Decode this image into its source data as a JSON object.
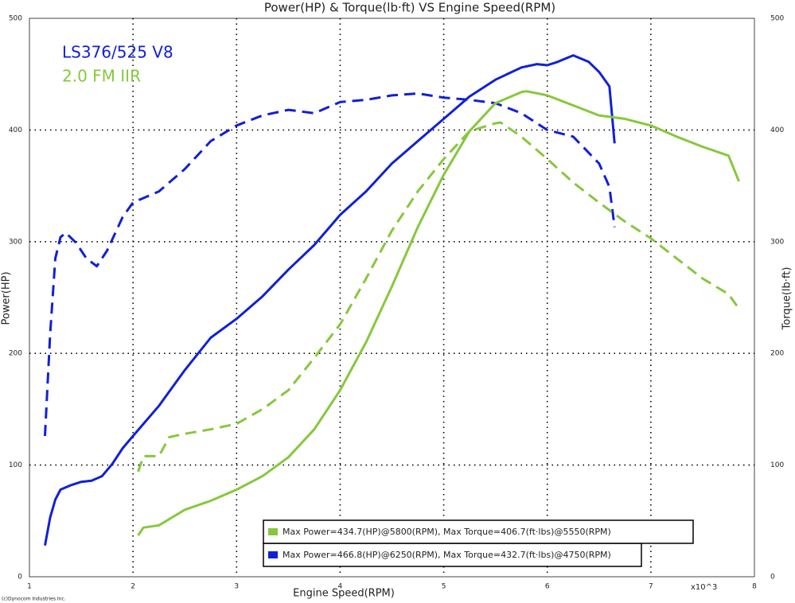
{
  "chart_data": {
    "type": "line",
    "title": "Power(HP) & Torque(lb·ft) VS Engine Speed(RPM)",
    "xlabel": "Engine Speed(RPM)",
    "ylabel": "Power(HP)",
    "y2label": "Torque(lb·ft)",
    "x_multiplier": "x10^3",
    "credit": "(c)Dynocom Industries Inc.",
    "xlim": [
      1,
      8
    ],
    "xticks": [
      1,
      2,
      3,
      4,
      5,
      6,
      7,
      8
    ],
    "ylim": [
      0,
      500
    ],
    "yticks": [
      0,
      100,
      200,
      300,
      400,
      500
    ],
    "y2lim": [
      0,
      500
    ],
    "y2ticks": [
      0,
      100,
      200,
      300,
      400,
      500
    ],
    "grid": true,
    "engines": [
      {
        "name": "LS376/525 V8",
        "color": "#1020d8",
        "summary": "Max Power=466.8(HP)@6250(RPM), Max Torque=432.7(ft·lbs)@4750(RPM)",
        "power": {
          "x": [
            1.15,
            1.2,
            1.25,
            1.3,
            1.4,
            1.5,
            1.6,
            1.7,
            1.8,
            1.9,
            2.0,
            2.25,
            2.5,
            2.75,
            3.0,
            3.25,
            3.5,
            3.75,
            4.0,
            4.25,
            4.5,
            4.75,
            5.0,
            5.25,
            5.5,
            5.75,
            5.9,
            6.0,
            6.1,
            6.25,
            6.4,
            6.5,
            6.6,
            6.65
          ],
          "values": [
            28,
            53,
            69,
            78,
            82,
            85,
            86,
            90,
            101,
            115,
            126,
            153,
            185,
            214,
            231,
            251,
            275,
            297,
            324,
            345,
            370,
            390,
            410,
            430,
            445,
            456,
            459,
            458,
            461,
            466.8,
            461,
            452,
            439,
            388
          ]
        },
        "torque": {
          "axis": "y2",
          "x": [
            1.15,
            1.2,
            1.25,
            1.3,
            1.35,
            1.45,
            1.55,
            1.65,
            1.75,
            1.9,
            2.0,
            2.25,
            2.5,
            2.75,
            3.0,
            3.25,
            3.5,
            3.75,
            4.0,
            4.25,
            4.5,
            4.75,
            5.0,
            5.25,
            5.5,
            5.75,
            6.0,
            6.25,
            6.5,
            6.6,
            6.65
          ],
          "values": [
            126,
            217,
            285,
            304,
            308,
            299,
            285,
            278,
            292,
            322,
            335,
            345,
            365,
            390,
            404,
            413,
            418,
            415,
            425,
            427,
            431,
            432.7,
            429,
            427,
            424,
            415,
            400,
            394,
            370,
            349,
            313
          ]
        }
      },
      {
        "name": "2.0 FM IIR",
        "color": "#86c83c",
        "summary": "Max Power=434.7(HP)@5800(RPM), Max Torque=406.7(ft·lbs)@5550(RPM)",
        "power": {
          "x": [
            2.05,
            2.1,
            2.25,
            2.5,
            2.75,
            3.0,
            3.25,
            3.5,
            3.75,
            4.0,
            4.25,
            4.5,
            4.75,
            5.0,
            5.25,
            5.5,
            5.75,
            5.8,
            6.0,
            6.25,
            6.5,
            6.75,
            7.0,
            7.25,
            7.5,
            7.75,
            7.85
          ],
          "values": [
            37,
            44,
            46,
            60,
            68,
            78,
            90,
            107,
            132,
            167,
            210,
            260,
            313,
            360,
            399,
            424,
            434,
            434.7,
            431,
            422,
            413,
            410,
            404,
            394,
            385,
            377,
            354
          ]
        },
        "torque": {
          "axis": "y2",
          "x": [
            2.05,
            2.1,
            2.25,
            2.35,
            2.5,
            2.75,
            3.0,
            3.25,
            3.5,
            3.75,
            4.0,
            4.25,
            4.5,
            4.75,
            5.0,
            5.25,
            5.5,
            5.55,
            5.75,
            6.0,
            6.25,
            6.5,
            6.75,
            7.0,
            7.25,
            7.5,
            7.75,
            7.85
          ],
          "values": [
            94,
            108,
            108,
            125,
            128,
            132,
            137,
            150,
            167,
            196,
            226,
            267,
            310,
            345,
            374,
            399,
            406,
            406.7,
            394,
            374,
            353,
            335,
            318,
            303,
            285,
            267,
            253,
            240
          ]
        }
      }
    ]
  }
}
